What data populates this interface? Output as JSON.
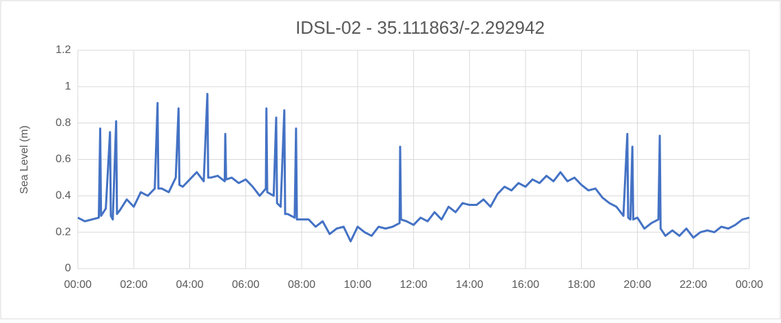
{
  "chart_data": {
    "type": "line",
    "title": "IDSL-02 - 35.111863/-2.292942",
    "y_label": "Sea Level (m)",
    "ylim": [
      0,
      1.2
    ],
    "yticks": [
      0,
      0.2,
      0.4,
      0.6,
      0.8,
      1,
      1.2
    ],
    "xlim": [
      0,
      24
    ],
    "xticks": [
      {
        "value": 0,
        "label": "00:00"
      },
      {
        "value": 2,
        "label": "02:00"
      },
      {
        "value": 4,
        "label": "04:00"
      },
      {
        "value": 6,
        "label": "06:00"
      },
      {
        "value": 8,
        "label": "08:00"
      },
      {
        "value": 10,
        "label": "10:00"
      },
      {
        "value": 12,
        "label": "12:00"
      },
      {
        "value": 14,
        "label": "14:00"
      },
      {
        "value": 16,
        "label": "16:00"
      },
      {
        "value": 18,
        "label": "18:00"
      },
      {
        "value": 20,
        "label": "20:00"
      },
      {
        "value": 22,
        "label": "22:00"
      },
      {
        "value": 24,
        "label": "00:00"
      }
    ],
    "grid": true,
    "x": [
      0,
      0.25,
      0.5,
      0.75,
      0.8,
      0.83,
      1.0,
      1.15,
      1.18,
      1.25,
      1.37,
      1.4,
      1.5,
      1.75,
      2.0,
      2.25,
      2.5,
      2.75,
      2.85,
      2.88,
      3.0,
      3.25,
      3.5,
      3.6,
      3.63,
      3.75,
      4.0,
      4.25,
      4.5,
      4.63,
      4.66,
      4.75,
      5.0,
      5.25,
      5.27,
      5.3,
      5.5,
      5.75,
      6.0,
      6.25,
      6.5,
      6.72,
      6.74,
      6.77,
      7.0,
      7.09,
      7.12,
      7.25,
      7.38,
      7.41,
      7.5,
      7.75,
      7.8,
      7.83,
      8.0,
      8.25,
      8.5,
      8.75,
      9.0,
      9.25,
      9.5,
      9.75,
      10.0,
      10.25,
      10.5,
      10.75,
      11.0,
      11.25,
      11.5,
      11.52,
      11.55,
      11.75,
      12.0,
      12.25,
      12.5,
      12.75,
      13.0,
      13.25,
      13.5,
      13.75,
      14.0,
      14.25,
      14.5,
      14.75,
      15.0,
      15.25,
      15.5,
      15.75,
      16.0,
      16.25,
      16.5,
      16.75,
      17.0,
      17.25,
      17.5,
      17.75,
      18.0,
      18.25,
      18.5,
      18.75,
      19.0,
      19.25,
      19.5,
      19.64,
      19.67,
      19.75,
      19.82,
      19.85,
      20.0,
      20.25,
      20.5,
      20.75,
      20.8,
      20.83,
      21.0,
      21.25,
      21.5,
      21.75,
      22.0,
      22.25,
      22.5,
      22.75,
      23.0,
      23.25,
      23.5,
      23.75,
      24.0
    ],
    "series": [
      {
        "name": "Sea Level",
        "color": "#4472c4",
        "values": [
          0.28,
          0.26,
          0.27,
          0.28,
          0.77,
          0.29,
          0.33,
          0.75,
          0.29,
          0.27,
          0.81,
          0.3,
          0.32,
          0.38,
          0.34,
          0.42,
          0.4,
          0.44,
          0.91,
          0.44,
          0.44,
          0.42,
          0.5,
          0.88,
          0.46,
          0.45,
          0.49,
          0.53,
          0.48,
          0.96,
          0.5,
          0.5,
          0.51,
          0.48,
          0.74,
          0.49,
          0.5,
          0.47,
          0.49,
          0.45,
          0.4,
          0.44,
          0.88,
          0.42,
          0.4,
          0.83,
          0.36,
          0.34,
          0.87,
          0.3,
          0.3,
          0.28,
          0.77,
          0.27,
          0.27,
          0.27,
          0.23,
          0.26,
          0.19,
          0.22,
          0.23,
          0.15,
          0.23,
          0.2,
          0.18,
          0.23,
          0.22,
          0.23,
          0.25,
          0.67,
          0.27,
          0.26,
          0.24,
          0.28,
          0.26,
          0.31,
          0.27,
          0.34,
          0.31,
          0.36,
          0.35,
          0.35,
          0.38,
          0.34,
          0.41,
          0.45,
          0.43,
          0.47,
          0.45,
          0.49,
          0.47,
          0.51,
          0.48,
          0.53,
          0.48,
          0.5,
          0.46,
          0.43,
          0.44,
          0.39,
          0.36,
          0.34,
          0.29,
          0.74,
          0.28,
          0.27,
          0.67,
          0.27,
          0.28,
          0.22,
          0.25,
          0.27,
          0.73,
          0.22,
          0.18,
          0.21,
          0.18,
          0.22,
          0.17,
          0.2,
          0.21,
          0.2,
          0.23,
          0.22,
          0.24,
          0.27,
          0.28
        ]
      }
    ]
  }
}
